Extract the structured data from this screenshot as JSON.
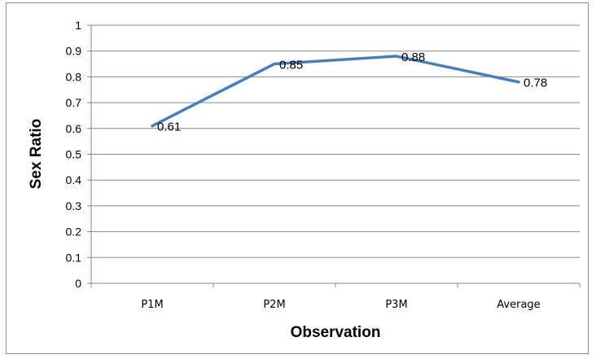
{
  "chart_data": {
    "type": "line",
    "categories": [
      "P1M",
      "P2M",
      "P3M",
      "Average"
    ],
    "series": [
      {
        "values": [
          0.61,
          0.85,
          0.88,
          0.78
        ]
      }
    ],
    "data_labels": [
      "0.61",
      "0.85",
      "0.88",
      "0.78"
    ],
    "y_ticks": [
      "0",
      "0.1",
      "0.2",
      "0.3",
      "0.4",
      "0.5",
      "0.6",
      "0.7",
      "0.8",
      "0.9",
      "1"
    ],
    "xlabel": "Observation",
    "ylabel": "Sex Ratio",
    "ylim": [
      0,
      1
    ],
    "grid": true,
    "line_color": "#4a7ebb"
  }
}
